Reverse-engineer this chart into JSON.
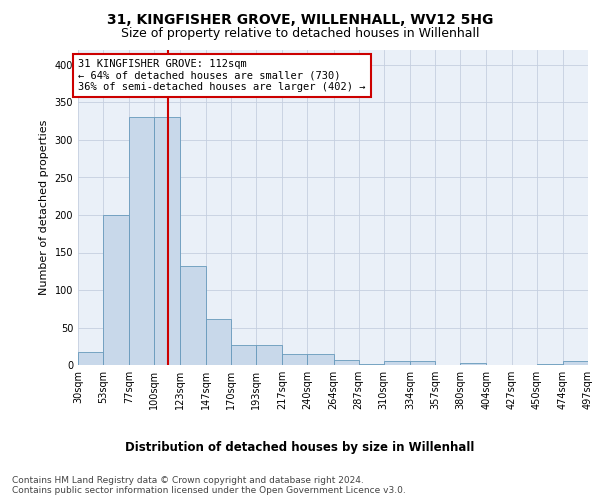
{
  "title1": "31, KINGFISHER GROVE, WILLENHALL, WV12 5HG",
  "title2": "Size of property relative to detached houses in Willenhall",
  "xlabel": "Distribution of detached houses by size in Willenhall",
  "ylabel": "Number of detached properties",
  "bar_color": "#c8d8ea",
  "bar_edge_color": "#6699bb",
  "grid_color": "#c5cfe0",
  "background_color": "#eaf0f8",
  "vline_value": 112,
  "vline_color": "#cc0000",
  "annotation_text": "31 KINGFISHER GROVE: 112sqm\n← 64% of detached houses are smaller (730)\n36% of semi-detached houses are larger (402) →",
  "annotation_box_color": "white",
  "annotation_box_edge": "#cc0000",
  "bin_edges": [
    30,
    53,
    77,
    100,
    123,
    147,
    170,
    193,
    217,
    240,
    264,
    287,
    310,
    334,
    357,
    380,
    404,
    427,
    450,
    474,
    497
  ],
  "bar_heights": [
    18,
    200,
    330,
    330,
    132,
    62,
    27,
    27,
    15,
    15,
    7,
    2,
    5,
    5,
    0,
    3,
    0,
    0,
    2,
    5
  ],
  "ylim": [
    0,
    420
  ],
  "yticks": [
    0,
    50,
    100,
    150,
    200,
    250,
    300,
    350,
    400
  ],
  "footer_text": "Contains HM Land Registry data © Crown copyright and database right 2024.\nContains public sector information licensed under the Open Government Licence v3.0.",
  "title1_fontsize": 10,
  "title2_fontsize": 9,
  "xlabel_fontsize": 8.5,
  "ylabel_fontsize": 8,
  "tick_fontsize": 7,
  "annotation_fontsize": 7.5,
  "footer_fontsize": 6.5
}
